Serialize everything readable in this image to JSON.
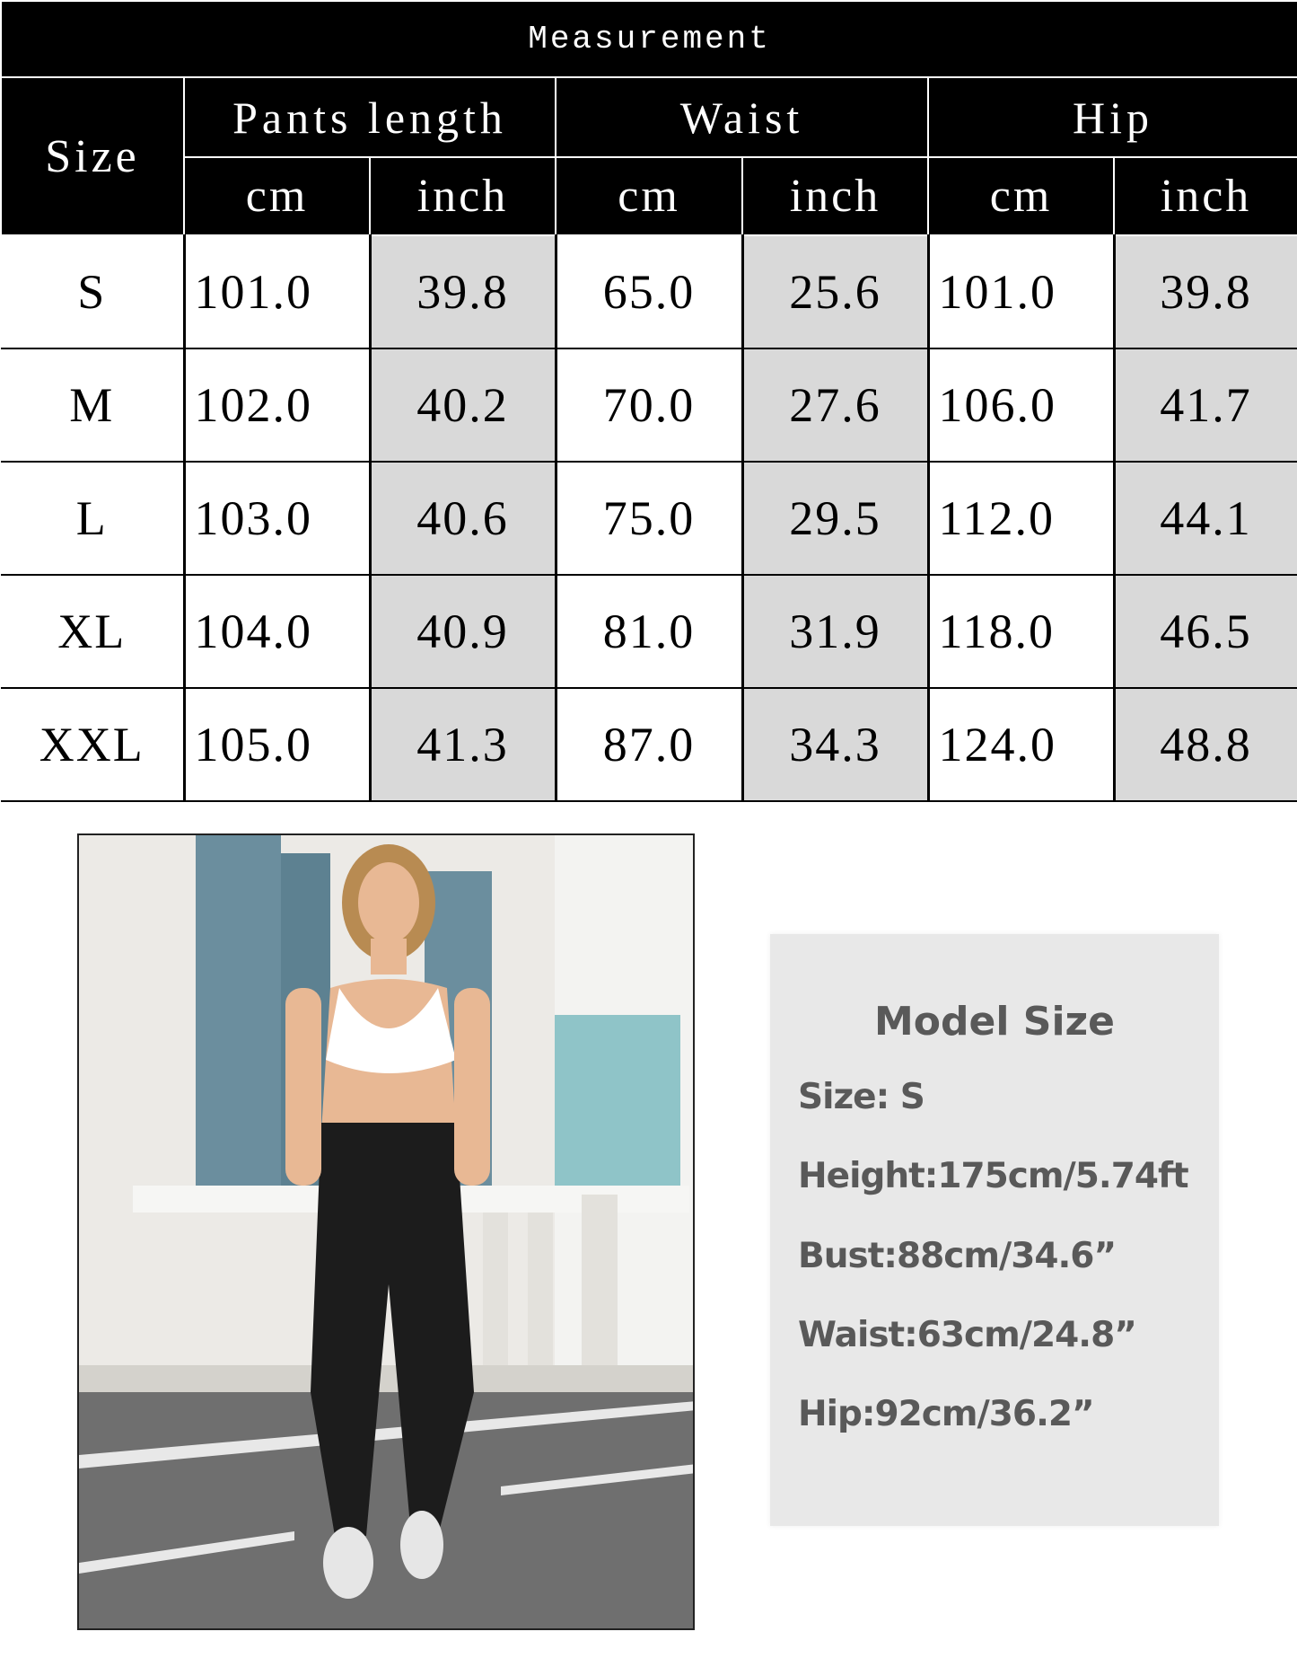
{
  "table": {
    "title": "Measurement",
    "size_header": "Size",
    "groups": [
      "Pants length",
      "Waist",
      "Hip"
    ],
    "units": [
      "cm",
      "inch",
      "cm",
      "inch",
      "cm",
      "inch"
    ],
    "rows": [
      {
        "size": "S",
        "values": [
          "101.0",
          "39.8",
          "65.0",
          "25.6",
          "101.0",
          "39.8"
        ]
      },
      {
        "size": "M",
        "values": [
          "102.0",
          "40.2",
          "70.0",
          "27.6",
          "106.0",
          "41.7"
        ]
      },
      {
        "size": "L",
        "values": [
          "103.0",
          "40.6",
          "75.0",
          "29.5",
          "112.0",
          "44.1"
        ]
      },
      {
        "size": "XL",
        "values": [
          "104.0",
          "40.9",
          "81.0",
          "31.9",
          "118.0",
          "46.5"
        ]
      },
      {
        "size": "XXL",
        "values": [
          "105.0",
          "41.3",
          "87.0",
          "34.3",
          "124.0",
          "48.8"
        ]
      }
    ],
    "colors": {
      "header_bg": "#000000",
      "inch_bg": "#d9d9d9"
    }
  },
  "model": {
    "title": "Model Size",
    "size": "Size:   S",
    "height": "Height:175cm/5.74ft",
    "bust": "Bust:88cm/34.6”",
    "waist": "Waist:63cm/24.8”",
    "hip": "Hip:92cm/36.2”",
    "photo": "model-photo-woman-in-black-joggers"
  }
}
